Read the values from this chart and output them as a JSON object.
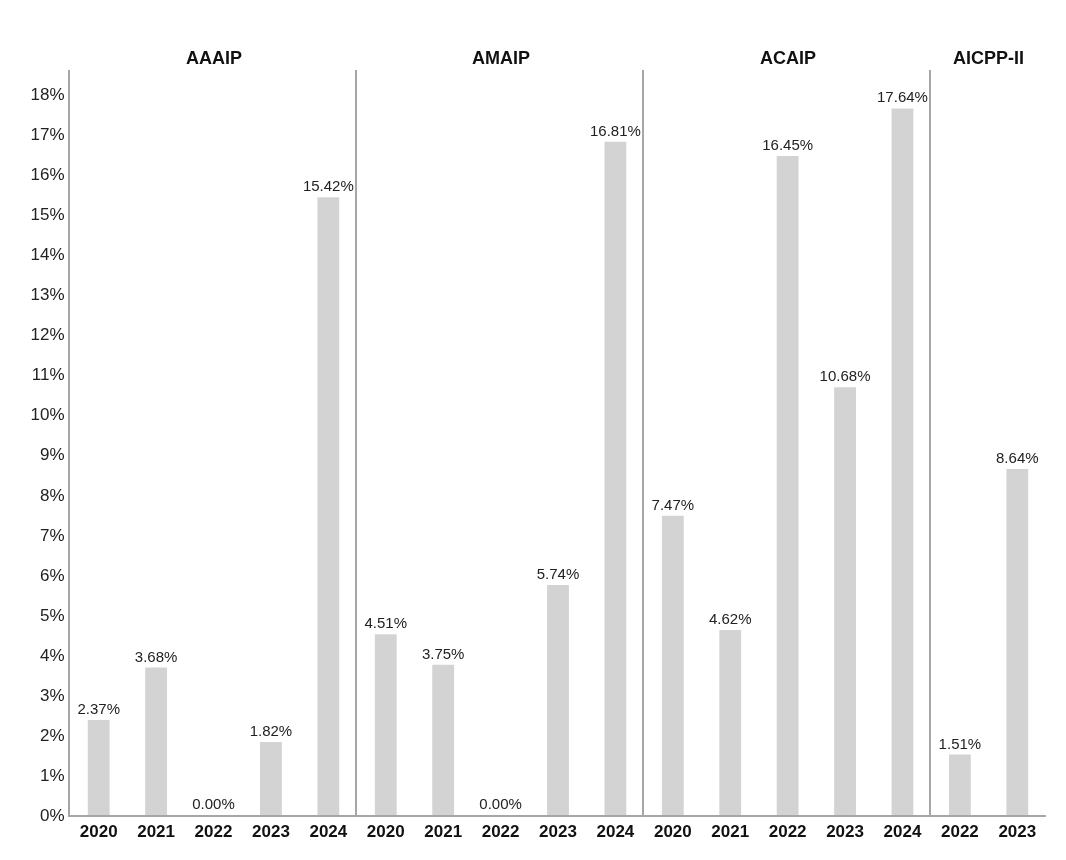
{
  "chart_data": [
    {
      "type": "bar",
      "title": "AAAIP",
      "categories": [
        "2020",
        "2021",
        "2022",
        "2023",
        "2024"
      ],
      "values": [
        2.37,
        3.68,
        0.0,
        1.82,
        15.42
      ],
      "value_labels": [
        "2.37%",
        "3.68%",
        "0.00%",
        "1.82%",
        "15.42%"
      ],
      "color": "#d3d3d3",
      "ylim": [
        0,
        18.6
      ],
      "yticks": [
        {
          "value": 0,
          "label": "0%"
        },
        {
          "value": 1,
          "label": "1%"
        },
        {
          "value": 2,
          "label": "2%"
        },
        {
          "value": 3,
          "label": "3%"
        },
        {
          "value": 4,
          "label": "4%"
        },
        {
          "value": 5,
          "label": "5%"
        },
        {
          "value": 6,
          "label": "6%"
        },
        {
          "value": 7,
          "label": "7%"
        },
        {
          "value": 8,
          "label": "8%"
        },
        {
          "value": 9,
          "label": "9%"
        },
        {
          "value": 10,
          "label": "10%"
        },
        {
          "value": 11,
          "label": "11%"
        },
        {
          "value": 12,
          "label": "12%"
        },
        {
          "value": 13,
          "label": "13%"
        },
        {
          "value": 14,
          "label": "14%"
        },
        {
          "value": 15,
          "label": "15%"
        },
        {
          "value": 16,
          "label": "16%"
        },
        {
          "value": 17,
          "label": "17%"
        },
        {
          "value": 18,
          "label": "18%"
        }
      ]
    },
    {
      "type": "bar",
      "title": "AMAIP",
      "categories": [
        "2020",
        "2021",
        "2022",
        "2023",
        "2024"
      ],
      "values": [
        4.51,
        3.75,
        0.0,
        5.74,
        16.81
      ],
      "value_labels": [
        "4.51%",
        "3.75%",
        "0.00%",
        "5.74%",
        "16.81%"
      ],
      "color": "#d3d3d3",
      "ylim": [
        0,
        18.6
      ],
      "tick_labels": "x"
    },
    {
      "type": "bar",
      "title": "ACAIP",
      "categories": [
        "2020",
        "2021",
        "2022",
        "2023",
        "2024"
      ],
      "values": [
        7.47,
        4.62,
        16.45,
        10.68,
        17.64
      ],
      "value_labels": [
        "7.47%",
        "4.62%",
        "16.45%",
        "10.68%",
        "17.64%"
      ],
      "color": "#d3d3d3",
      "ylim": [
        0,
        18.6
      ],
      "tick_labels": "x"
    },
    {
      "type": "bar",
      "title": "AICPP-II",
      "categories": [
        "2022",
        "2023"
      ],
      "values": [
        1.51,
        8.64
      ],
      "value_labels": [
        "1.51%",
        "8.64%"
      ],
      "color": "#d3d3d3",
      "ylim": [
        0,
        18.6
      ],
      "tick_labels": "x"
    }
  ]
}
